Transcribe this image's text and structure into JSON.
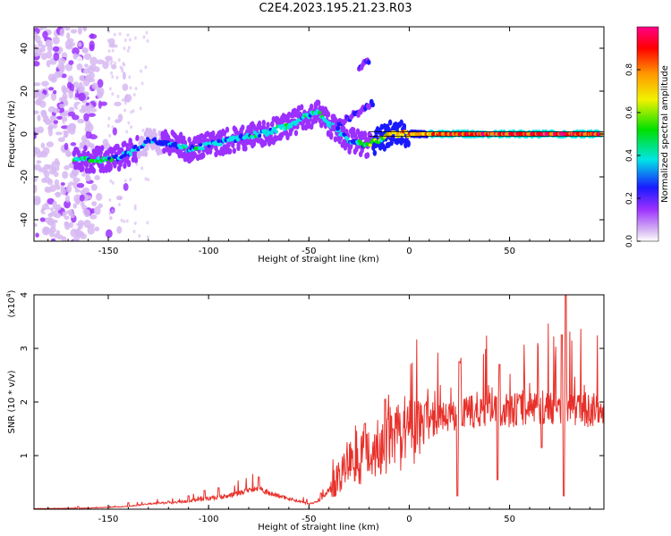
{
  "figure": {
    "title": "C2E4.2023.195.21.23.R03"
  },
  "colors": {
    "snr_line": "#e8302a",
    "colormap": [
      "#ffffff",
      "#d7b8f2",
      "#9b30ff",
      "#1a1aff",
      "#00e5e5",
      "#00e000",
      "#f2f200",
      "#ff9900",
      "#ff0000",
      "#ff0088"
    ]
  },
  "chart_data": [
    {
      "type": "heatmap",
      "title": "",
      "xlabel": "Height of straight line (km)",
      "ylabel": "Frequency (Hz)",
      "xlim": [
        -187,
        97
      ],
      "ylim": [
        -50,
        50
      ],
      "xticks": [
        -150,
        -100,
        -50,
        0,
        50
      ],
      "xtick_labels": [
        "-150",
        "-100",
        "-50",
        "0",
        "50"
      ],
      "yticks": [
        -40,
        -20,
        0,
        20,
        40
      ],
      "ytick_labels": [
        "-40",
        "-20",
        "0",
        "20",
        "40"
      ],
      "grid": false,
      "colorbar": {
        "label": "Normalized spectral amplitude",
        "range": [
          0,
          1
        ],
        "ticks": [
          0.0,
          0.2,
          0.4,
          0.6,
          0.8
        ],
        "tick_labels": [
          "0.0",
          "0.2",
          "0.4",
          "0.6",
          "0.8"
        ]
      },
      "ridge": {
        "x": [
          -165,
          -155,
          -145,
          -138,
          -130,
          -120,
          -110,
          -100,
          -90,
          -80,
          -70,
          -60,
          -52,
          -45,
          -40,
          -30,
          -22,
          -15,
          -10,
          0,
          10,
          20,
          40,
          60,
          80,
          95
        ],
        "y": [
          -12,
          -12,
          -11,
          -8,
          -3,
          -4,
          -7,
          -5,
          -3,
          -1,
          1,
          4,
          8,
          10,
          5,
          -3,
          -5,
          -3,
          0,
          0,
          0,
          0,
          0,
          0,
          0,
          0
        ],
        "amplitude": [
          0.45,
          0.5,
          0.4,
          0.35,
          0.3,
          0.35,
          0.45,
          0.4,
          0.4,
          0.4,
          0.45,
          0.45,
          0.45,
          0.5,
          0.4,
          0.4,
          0.5,
          0.6,
          0.75,
          0.8,
          0.85,
          0.9,
          0.95,
          0.95,
          0.95,
          0.95
        ]
      },
      "secondary_branches": [
        {
          "x": [
            -38,
            -30,
            -22,
            -18
          ],
          "y": [
            2,
            8,
            12,
            14
          ]
        },
        {
          "x": [
            -25,
            -20
          ],
          "y": [
            30,
            35
          ]
        }
      ]
    },
    {
      "type": "line",
      "title": "",
      "xlabel": "Height of straight line (km)",
      "ylabel": "SNR (10 * v/v)",
      "scale_label": "(x10",
      "scale_exponent": "4",
      "scale_close": ")",
      "xlim": [
        -187,
        97
      ],
      "ylim": [
        0,
        4
      ],
      "xticks": [
        -150,
        -100,
        -50,
        0,
        50
      ],
      "xtick_labels": [
        "-150",
        "-100",
        "-50",
        "0",
        "50"
      ],
      "yticks": [
        1,
        2,
        3,
        4
      ],
      "ytick_labels": [
        "1",
        "2",
        "3",
        "4"
      ],
      "grid": false,
      "series": [
        {
          "envelope_x": [
            -187,
            -160,
            -140,
            -130,
            -120,
            -110,
            -100,
            -90,
            -80,
            -75,
            -70,
            -60,
            -50,
            -45,
            -40,
            -35,
            -30,
            -25,
            -20,
            -15,
            -10,
            -5,
            0,
            5,
            10,
            20,
            30,
            40,
            50,
            60,
            70,
            80,
            90,
            97
          ],
          "envelope_y": [
            0.01,
            0.02,
            0.05,
            0.1,
            0.12,
            0.15,
            0.2,
            0.25,
            0.35,
            0.4,
            0.3,
            0.2,
            0.1,
            0.15,
            0.35,
            0.6,
            0.9,
            1.0,
            1.1,
            1.15,
            1.3,
            1.3,
            1.4,
            1.55,
            1.6,
            1.75,
            1.8,
            1.85,
            1.85,
            1.9,
            1.9,
            1.9,
            1.85,
            1.85
          ],
          "spikes_x": [
            -165,
            -140,
            -128,
            -120,
            -110,
            -102,
            -95,
            -75,
            -44,
            -22,
            -12,
            -8,
            8,
            24,
            25,
            44,
            45,
            66,
            76,
            77,
            78
          ],
          "spikes_y": [
            0.05,
            0.12,
            0.1,
            0.15,
            0.25,
            0.35,
            0.4,
            0.6,
            0.3,
            1.6,
            2.05,
            1.5,
            1.95,
            0.25,
            2.75,
            0.55,
            2.7,
            1.15,
            3.25,
            0.25,
            4.0
          ]
        }
      ]
    }
  ]
}
